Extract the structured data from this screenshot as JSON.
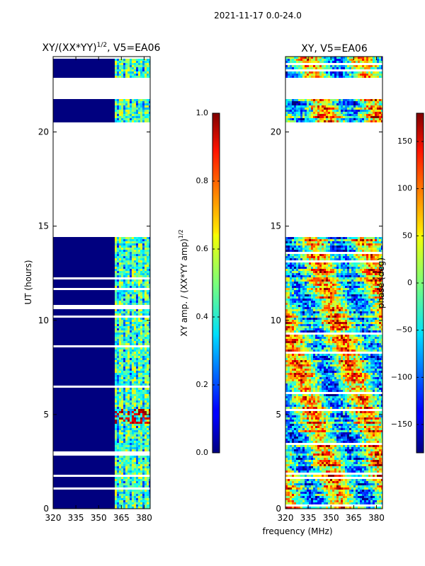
{
  "figure": {
    "suptitle": "2021-11-17 0.0-24.0",
    "xlabel": "frequency (MHz)"
  },
  "chart_data": [
    {
      "type": "heatmap",
      "title_main": "XY/(XX*YY)",
      "title_exp": "1/2",
      "title_tail": ", V5=EA06",
      "xlabel": "",
      "ylabel": "UT (hours)",
      "xlim": [
        320,
        384
      ],
      "ylim": [
        0,
        24
      ],
      "xticks": [
        "320",
        "335",
        "350",
        "365",
        "380"
      ],
      "xtick_values": [
        320,
        335,
        350,
        365,
        380
      ],
      "yticks": [
        "0",
        "5",
        "10",
        "15",
        "20"
      ],
      "ytick_values": [
        0,
        5,
        10,
        15,
        20
      ],
      "data_hours": [
        [
          0,
          14.4
        ],
        [
          20.5,
          21.8
        ],
        [
          22.9,
          24
        ]
      ],
      "colorbar": {
        "label_main": "XY amp. / (XX*YY amp)",
        "label_exp": "1/2",
        "range": [
          0,
          1
        ],
        "ticks": [
          "0.0",
          "0.2",
          "0.4",
          "0.6",
          "0.8",
          "1.0"
        ],
        "tick_values": [
          0,
          0.2,
          0.4,
          0.6,
          0.8,
          1.0
        ]
      }
    },
    {
      "type": "heatmap",
      "title": "XY, V5=EA06",
      "xlabel": "frequency (MHz)",
      "ylabel": "",
      "xlim": [
        320,
        384
      ],
      "ylim": [
        0,
        24
      ],
      "xticks": [
        "320",
        "335",
        "350",
        "365",
        "380"
      ],
      "xtick_values": [
        320,
        335,
        350,
        365,
        380
      ],
      "yticks": [
        "0",
        "5",
        "10",
        "15",
        "20"
      ],
      "ytick_values": [
        0,
        5,
        10,
        15,
        20
      ],
      "data_hours": [
        [
          0,
          14.4
        ],
        [
          20.5,
          21.8
        ],
        [
          22.9,
          24
        ]
      ],
      "colorbar": {
        "label": "phase (deg)",
        "range": [
          -180,
          180
        ],
        "ticks": [
          "−150",
          "−100",
          "−50",
          "0",
          "50",
          "100",
          "150"
        ],
        "tick_values": [
          -150,
          -100,
          -50,
          0,
          50,
          100,
          150
        ]
      }
    }
  ]
}
